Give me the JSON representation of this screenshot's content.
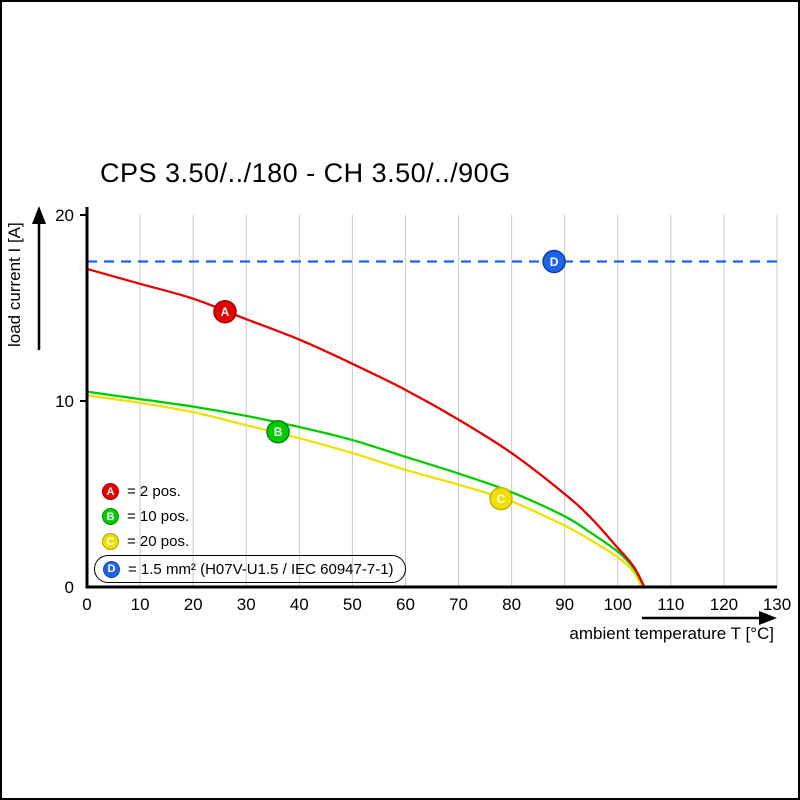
{
  "title": "CPS 3.50/../180 - CH 3.50/../90G",
  "axes": {
    "y_label": "load current I [A]",
    "x_label": "ambient temperature T [°C]"
  },
  "legend": {
    "items": [
      {
        "key": "A",
        "label": "= 2 pos.",
        "color": "#e60000"
      },
      {
        "key": "B",
        "label": "= 10 pos.",
        "color": "#00cc00"
      },
      {
        "key": "C",
        "label": "= 20 pos.",
        "color": "#f0e000"
      },
      {
        "key": "D",
        "label": "= 1.5 mm² (H07V-U1.5 / IEC 60947-7-1)",
        "color": "#1e64e8"
      }
    ]
  },
  "chart_data": {
    "type": "line",
    "title": "CPS 3.50/../180 - CH 3.50/../90G",
    "xlabel": "ambient temperature T [°C]",
    "ylabel": "load current I [A]",
    "xlim": [
      0,
      130
    ],
    "ylim": [
      0,
      20
    ],
    "x_ticks": [
      0,
      10,
      20,
      30,
      40,
      50,
      60,
      70,
      80,
      90,
      100,
      110,
      120,
      130
    ],
    "y_ticks": [
      0,
      10,
      20
    ],
    "grid": "vertical",
    "legend_position": "lower-left",
    "series": [
      {
        "name": "A",
        "label": "2 pos.",
        "color": "#e60000",
        "ring": "#a80000",
        "style": "solid",
        "points": [
          [
            0,
            17.1
          ],
          [
            10,
            16.3
          ],
          [
            20,
            15.5
          ],
          [
            30,
            14.4
          ],
          [
            40,
            13.3
          ],
          [
            50,
            12.0
          ],
          [
            60,
            10.6
          ],
          [
            70,
            9.0
          ],
          [
            80,
            7.2
          ],
          [
            90,
            5.0
          ],
          [
            95,
            3.7
          ],
          [
            100,
            2.1
          ],
          [
            103,
            1.1
          ],
          [
            105,
            0
          ]
        ]
      },
      {
        "name": "B",
        "label": "10 pos.",
        "color": "#00cc00",
        "ring": "#008a00",
        "style": "solid",
        "points": [
          [
            0,
            10.5
          ],
          [
            10,
            10.1
          ],
          [
            20,
            9.7
          ],
          [
            30,
            9.2
          ],
          [
            40,
            8.6
          ],
          [
            50,
            7.9
          ],
          [
            60,
            7.0
          ],
          [
            70,
            6.1
          ],
          [
            80,
            5.1
          ],
          [
            90,
            3.8
          ],
          [
            95,
            2.9
          ],
          [
            100,
            1.9
          ],
          [
            103,
            1.0
          ],
          [
            105,
            0
          ]
        ]
      },
      {
        "name": "C",
        "label": "20 pos.",
        "color": "#f0e000",
        "ring": "#c2b400",
        "style": "solid",
        "points": [
          [
            0,
            10.3
          ],
          [
            10,
            9.9
          ],
          [
            20,
            9.4
          ],
          [
            30,
            8.7
          ],
          [
            40,
            8.0
          ],
          [
            50,
            7.2
          ],
          [
            60,
            6.3
          ],
          [
            70,
            5.5
          ],
          [
            80,
            4.6
          ],
          [
            90,
            3.3
          ],
          [
            95,
            2.5
          ],
          [
            100,
            1.6
          ],
          [
            103,
            0.8
          ],
          [
            104.5,
            0
          ]
        ]
      },
      {
        "name": "D",
        "label": "1.5 mm² (H07V-U1.5 / IEC 60947-7-1)",
        "color": "#1e64e8",
        "ring": "#10409e",
        "style": "dashed",
        "points": [
          [
            0,
            17.5
          ],
          [
            130,
            17.5
          ]
        ]
      }
    ],
    "markers": [
      {
        "key": "A",
        "x": 26,
        "y": 14.8
      },
      {
        "key": "B",
        "x": 36,
        "y": 8.35
      },
      {
        "key": "C",
        "x": 78,
        "y": 4.75
      },
      {
        "key": "D",
        "x": 88,
        "y": 17.5
      }
    ]
  }
}
